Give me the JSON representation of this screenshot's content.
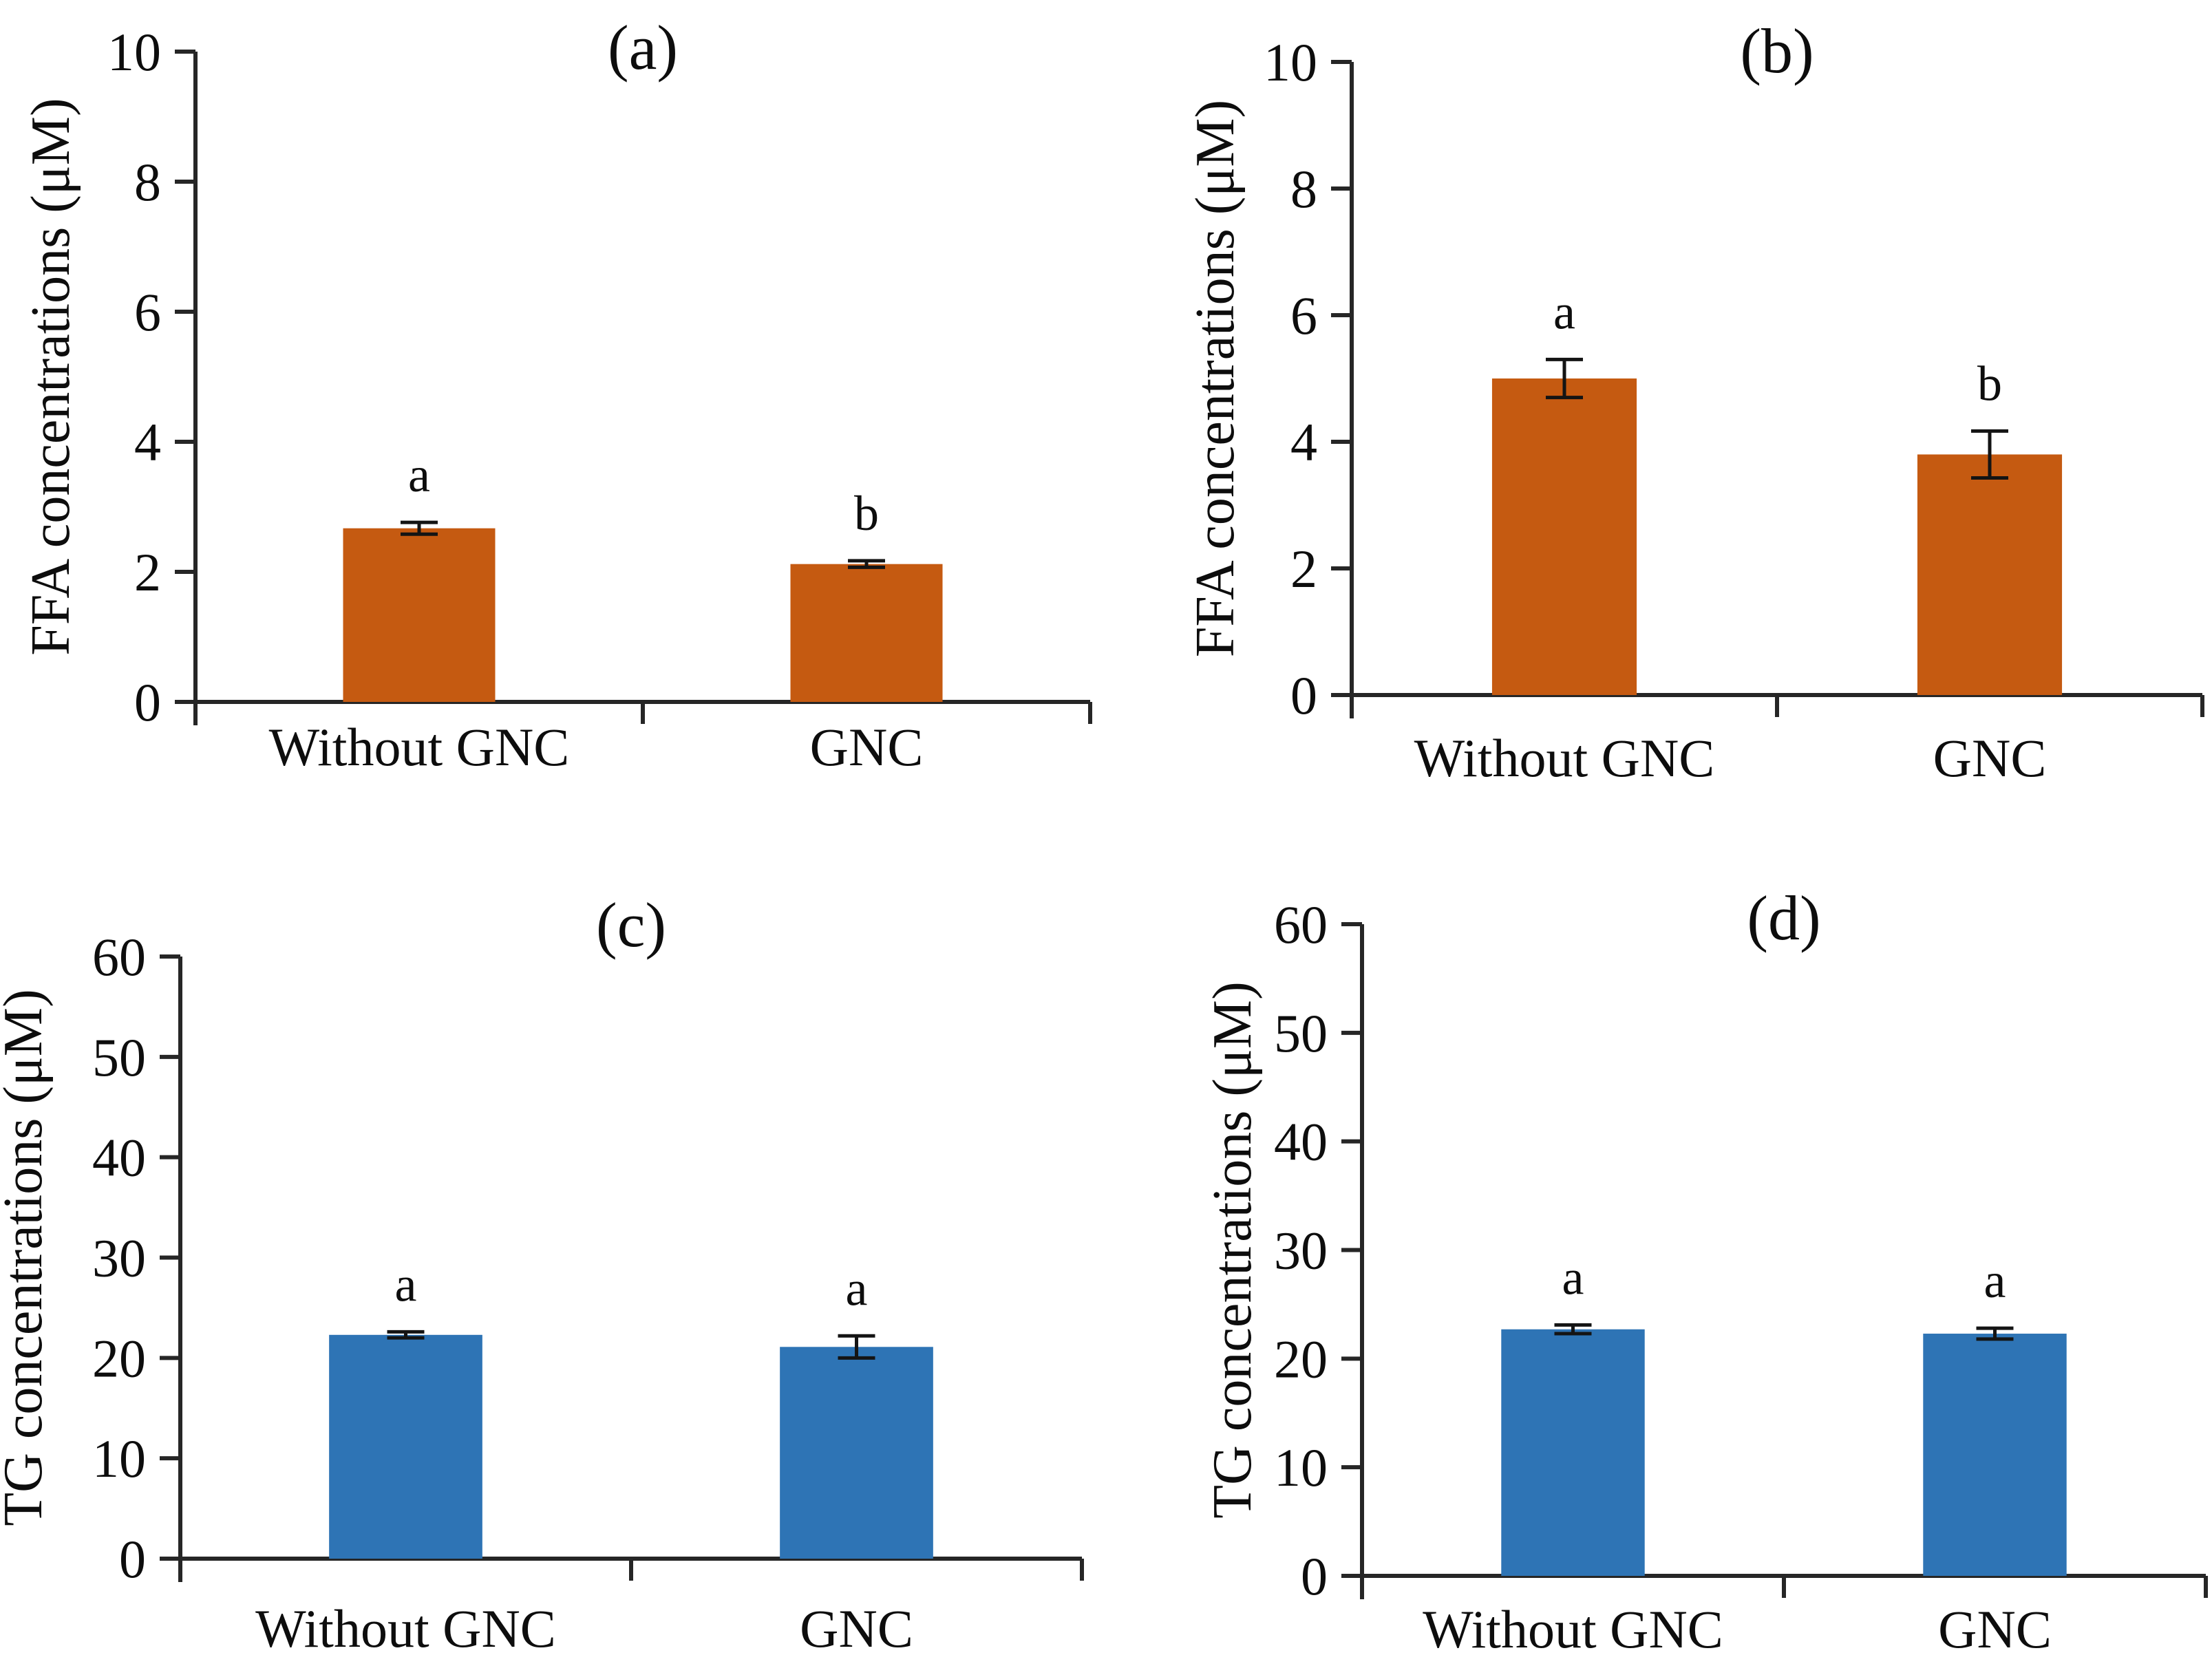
{
  "figure": {
    "background": "#ffffff",
    "text_color": "#0d0d0d",
    "axis_color": "#262626",
    "panel_labels": [
      "(a)",
      "(b)",
      "(c)",
      "(d)"
    ]
  },
  "chart_data": [
    {
      "type": "bar",
      "title": "(a)",
      "ylabel": "FFA concentrations (μM)",
      "xlabel": "",
      "categories": [
        "Without GNC",
        "GNC"
      ],
      "values": [
        2.67,
        2.12
      ],
      "error_bars": [
        0.09,
        0.05
      ],
      "sig_labels": [
        "a",
        "b"
      ],
      "ylim": [
        0,
        10
      ],
      "yticks": [
        0,
        2,
        4,
        6,
        8,
        10
      ],
      "bar_color": "#C55A11",
      "grid": false,
      "legend": "none"
    },
    {
      "type": "bar",
      "title": "(b)",
      "ylabel": "FFA concentrations (μM)",
      "xlabel": "",
      "categories": [
        "Without GNC",
        "GNC"
      ],
      "values": [
        5.0,
        3.8
      ],
      "error_bars": [
        0.3,
        0.37
      ],
      "sig_labels": [
        "a",
        "b"
      ],
      "ylim": [
        0,
        10
      ],
      "yticks": [
        0,
        2,
        4,
        6,
        8,
        10
      ],
      "bar_color": "#C55A11",
      "grid": false,
      "legend": "none"
    },
    {
      "type": "bar",
      "title": "(c)",
      "ylabel": "TG concentrations (μM)",
      "xlabel": "",
      "categories": [
        "Without GNC",
        "GNC"
      ],
      "values": [
        22.3,
        21.1
      ],
      "error_bars": [
        0.3,
        1.1
      ],
      "sig_labels": [
        "a",
        "a"
      ],
      "ylim": [
        0,
        60
      ],
      "yticks": [
        0,
        10,
        20,
        30,
        40,
        50,
        60
      ],
      "bar_color": "#2E74B5",
      "grid": false,
      "legend": "none"
    },
    {
      "type": "bar",
      "title": "(d)",
      "ylabel": "TG concentrations (μM)",
      "xlabel": "",
      "categories": [
        "Without GNC",
        "GNC"
      ],
      "values": [
        22.7,
        22.3
      ],
      "error_bars": [
        0.4,
        0.5
      ],
      "sig_labels": [
        "a",
        "a"
      ],
      "ylim": [
        0,
        60
      ],
      "yticks": [
        0,
        10,
        20,
        30,
        40,
        50,
        60
      ],
      "bar_color": "#2E74B5",
      "grid": false,
      "legend": "none"
    }
  ]
}
